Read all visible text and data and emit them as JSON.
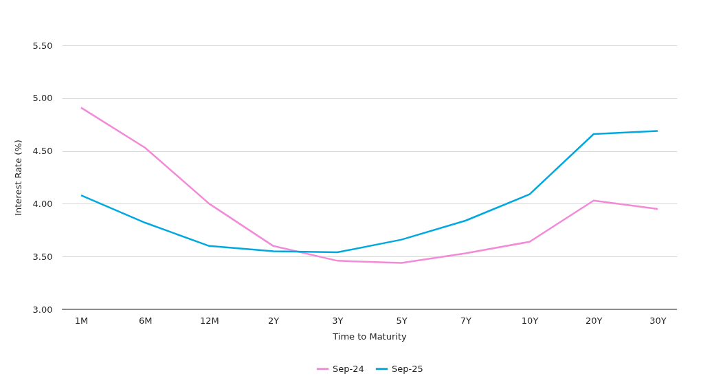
{
  "chart_data": {
    "type": "line",
    "xlabel": "Time to Maturity",
    "ylabel": "Interest Rate (%)",
    "categories": [
      "1M",
      "6M",
      "12M",
      "2Y",
      "3Y",
      "5Y",
      "7Y",
      "10Y",
      "20Y",
      "30Y"
    ],
    "ylim": [
      3,
      5.5
    ],
    "yticks": [
      {
        "value": 3,
        "label": "3.00"
      },
      {
        "value": 3.5,
        "label": "3.50"
      },
      {
        "value": 4,
        "label": "4.00"
      },
      {
        "value": 4.5,
        "label": "4.50"
      },
      {
        "value": 5,
        "label": "5.00"
      },
      {
        "value": 5.5,
        "label": "5.50"
      }
    ],
    "grid": "y",
    "legend": "bottom",
    "marker": "none",
    "line_style": "solid",
    "series": [
      {
        "name": "Sep-24",
        "color": "#f28ad8",
        "values": [
          4.91,
          4.53,
          4.0,
          3.6,
          3.46,
          3.44,
          3.53,
          3.64,
          4.03,
          3.95
        ]
      },
      {
        "name": "Sep-25",
        "color": "#00a8e0",
        "values": [
          4.08,
          3.82,
          3.6,
          3.55,
          3.54,
          3.66,
          3.84,
          4.09,
          4.66,
          4.69
        ]
      }
    ]
  }
}
